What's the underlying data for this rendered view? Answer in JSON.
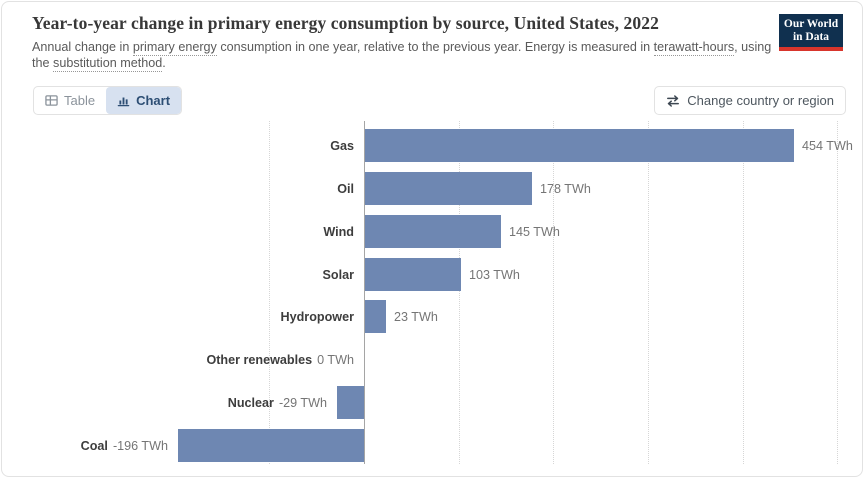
{
  "header": {
    "title": "Year-to-year change in primary energy consumption by source, United States, 2022",
    "subtitle_parts": [
      {
        "text": "Annual change in "
      },
      {
        "text": "primary energy",
        "underline": true
      },
      {
        "text": " consumption in one year, relative to the previous year. Energy is measured in "
      },
      {
        "text": "terawatt-hours",
        "underline": true
      },
      {
        "text": ", using the "
      },
      {
        "text": "substitution method",
        "underline": true
      },
      {
        "text": "."
      }
    ],
    "logo": {
      "line1": "Our World",
      "line2": "in Data"
    }
  },
  "toolbar": {
    "table_label": "Table",
    "chart_label": "Chart",
    "change_label": "Change country or region"
  },
  "colors": {
    "bar": "#6e87b2",
    "accent_navy": "#2d4e74",
    "logo_bg": "#10304f",
    "logo_red": "#d8352c"
  },
  "chart_data": {
    "type": "bar",
    "orientation": "horizontal",
    "title": "Year-to-year change in primary energy consumption by source, United States, 2022",
    "unit": "TWh",
    "categories": [
      "Gas",
      "Oil",
      "Wind",
      "Solar",
      "Hydropower",
      "Other renewables",
      "Nuclear",
      "Coal"
    ],
    "values": [
      454,
      178,
      145,
      103,
      23,
      0,
      -29,
      -196
    ],
    "value_labels": [
      "454 TWh",
      "178 TWh",
      "145 TWh",
      "103 TWh",
      "23 TWh",
      "0 TWh",
      "-29 TWh",
      "-196 TWh"
    ],
    "xlim": [
      -210,
      530
    ],
    "gridlines": [
      -100,
      0,
      100,
      200,
      300,
      400,
      500
    ],
    "grid": "vertical-dotted",
    "legend": "none",
    "xlabel": "",
    "ylabel": ""
  }
}
